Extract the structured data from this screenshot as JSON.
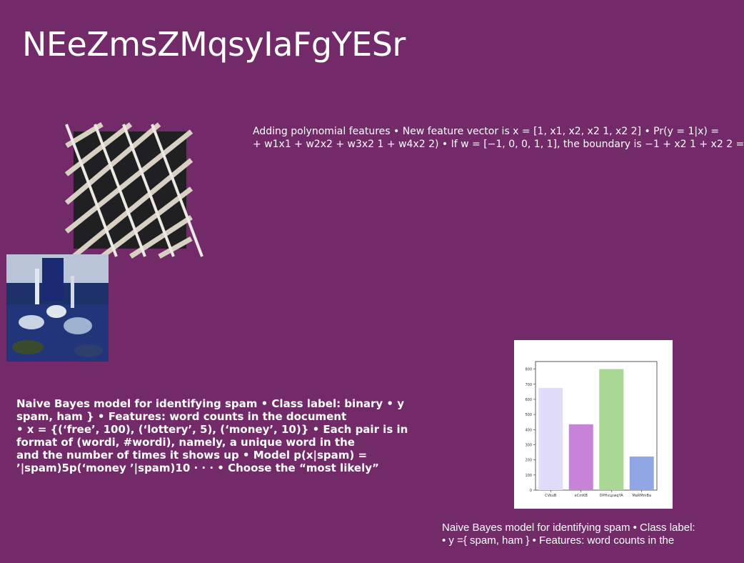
{
  "slide": {
    "title": "NEeZmsZMqsyIaFgYESr",
    "polynomial_text": {
      "line1": "Adding polynomial features • New feature vector is x = [1, x1, x2, x2 1, x2 2] • Pr(y = 1|x) =",
      "line2": "+ w1x1 + w2x2 + w3x2 1 + w4x2 2) • If w = [−1, 0, 0, 1, 1], the boundary is −1 + x2 1 + x2 2 ="
    },
    "naive_bayes_bold": {
      "line1": "Naive Bayes model for identifying spam • Class label: binary • y",
      "line2": "spam, ham } • Features: word counts in the document",
      "line3": "• x = {(‘free’, 100), (‘lottery’, 5), (‘money’, 10)} • Each pair is in",
      "line4": "format of (wordi, #wordi), namely, a unique word in the",
      "line5": "and the number of times it shows up • Model p(x|spam) =",
      "line6": "’|spam)5p(‘money ’|spam)10 · · · • Choose the “most likely”"
    },
    "naive_bayes_caption": {
      "line1": "Naive Bayes model for identifying spam • Class label:",
      "line2": "• y ={ spam, ham } • Features: word counts in the"
    }
  },
  "chart_data": {
    "type": "bar",
    "categories": [
      "CVkuB",
      "eCmKB",
      "DPHvLpwqYA",
      "MaRMmBa"
    ],
    "values": [
      675,
      435,
      800,
      222
    ],
    "ylim": [
      0,
      850
    ],
    "yticks": [
      0,
      100,
      200,
      300,
      400,
      500,
      600,
      700,
      800
    ],
    "colors": [
      "#e2dcfb",
      "#c783d8",
      "#a8d894",
      "#91a6e4"
    ],
    "grid": false
  }
}
